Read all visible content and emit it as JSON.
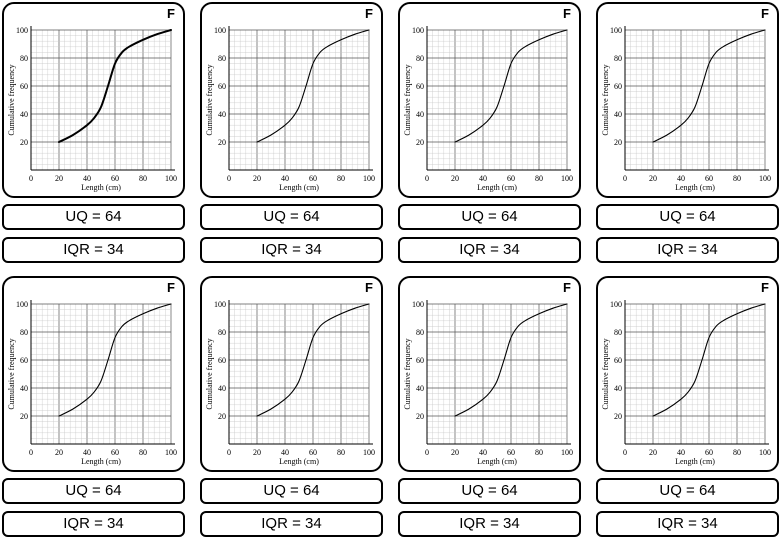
{
  "cards": [
    {
      "letter": "F",
      "uq": "UQ = 64",
      "iqr": "IQR = 34"
    },
    {
      "letter": "F",
      "uq": "UQ = 64",
      "iqr": "IQR = 34"
    },
    {
      "letter": "F",
      "uq": "UQ = 64",
      "iqr": "IQR = 34"
    },
    {
      "letter": "F",
      "uq": "UQ = 64",
      "iqr": "IQR = 34"
    },
    {
      "letter": "F",
      "uq": "UQ = 64",
      "iqr": "IQR = 34"
    },
    {
      "letter": "F",
      "uq": "UQ = 64",
      "iqr": "IQR = 34"
    },
    {
      "letter": "F",
      "uq": "UQ = 64",
      "iqr": "IQR = 34"
    },
    {
      "letter": "F",
      "uq": "UQ = 64",
      "iqr": "IQR = 34"
    }
  ],
  "chart_data": {
    "type": "line",
    "xlabel": "Length (cm)",
    "ylabel": "Cumulative frequency",
    "xlim": [
      0,
      100
    ],
    "ylim": [
      0,
      100
    ],
    "xticks": [
      0,
      20,
      40,
      60,
      80,
      100
    ],
    "yticks": [
      20,
      40,
      60,
      80,
      100
    ],
    "grid": true,
    "series": [
      {
        "x": [
          20,
          30,
          40,
          45,
          50,
          55,
          60,
          65,
          70,
          80,
          90,
          100
        ],
        "y": [
          20,
          25,
          32,
          37,
          45,
          60,
          76,
          84,
          88,
          93,
          97,
          100
        ]
      }
    ]
  }
}
